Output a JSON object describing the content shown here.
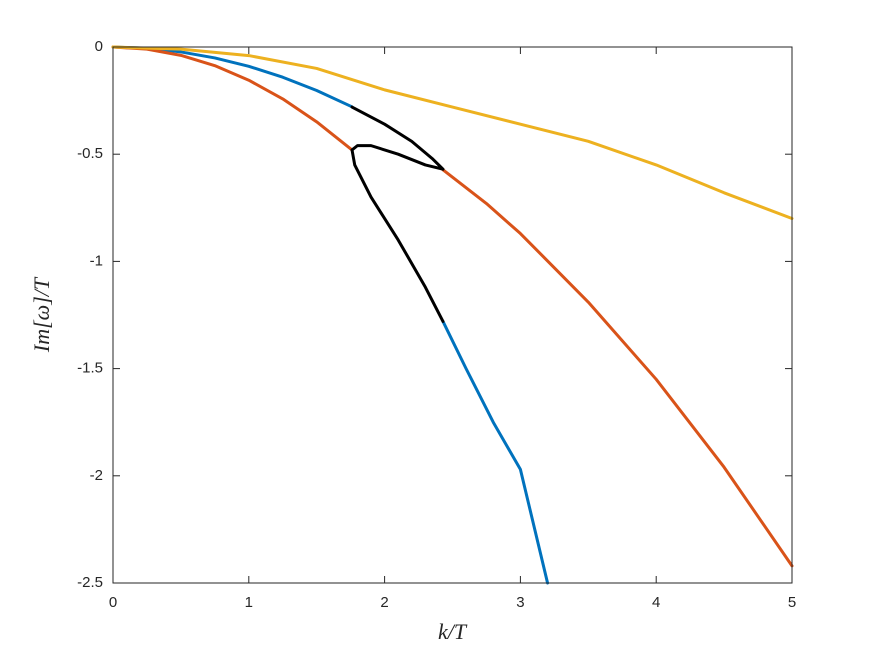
{
  "chart_data": {
    "type": "line",
    "x_label": "k/T",
    "y_label": "Im[ω]/T",
    "xlim": [
      0,
      5
    ],
    "ylim": [
      -2.5,
      0
    ],
    "xticks": [
      0,
      1,
      2,
      3,
      4,
      5
    ],
    "yticks": [
      0,
      -0.5,
      -1,
      -1.5,
      -2,
      -2.5
    ],
    "grid": false,
    "series": [
      {
        "color": "#0072bd",
        "x": [
          0,
          0.25,
          0.5,
          0.75,
          1,
          1.25,
          1.5,
          1.76,
          null,
          2.43,
          2.6,
          2.8,
          3.0,
          3.2
        ],
        "values": [
          0,
          -0.006,
          -0.023,
          -0.051,
          -0.09,
          -0.141,
          -0.203,
          -0.279,
          null,
          -1.28,
          -1.5,
          -1.75,
          -1.97,
          -2.5
        ]
      },
      {
        "color": "#d95319",
        "x": [
          0,
          0.25,
          0.5,
          0.75,
          1,
          1.25,
          1.5,
          1.76,
          null,
          2.43,
          2.75,
          3.0,
          3.5,
          4.0,
          4.5,
          5.0
        ],
        "values": [
          0,
          -0.01,
          -0.039,
          -0.087,
          -0.155,
          -0.242,
          -0.349,
          -0.48,
          null,
          -0.573,
          -0.73,
          -0.87,
          -1.19,
          -1.55,
          -1.96,
          -2.42
        ]
      },
      {
        "color": "#edb120",
        "x": [
          0,
          0.5,
          1,
          1.5,
          2,
          2.5,
          3,
          3.5,
          4,
          4.5,
          5
        ],
        "values": [
          0,
          -0.01,
          -0.04,
          -0.1,
          -0.2,
          -0.28,
          -0.36,
          -0.44,
          -0.55,
          -0.68,
          -0.8
        ]
      },
      {
        "color": "#000000",
        "x": [
          1.76,
          2.0,
          2.2,
          2.35,
          2.43,
          null,
          1.76,
          1.8,
          1.9,
          2.1,
          2.3,
          2.43,
          null,
          1.76,
          1.78,
          1.9,
          2.1,
          2.3,
          2.43
        ],
        "values": [
          -0.28,
          -0.36,
          -0.44,
          -0.52,
          -0.57,
          null,
          -0.48,
          -0.46,
          -0.46,
          -0.5,
          -0.55,
          -0.57,
          null,
          -0.48,
          -0.55,
          -0.7,
          -0.9,
          -1.12,
          -1.28
        ]
      }
    ]
  }
}
